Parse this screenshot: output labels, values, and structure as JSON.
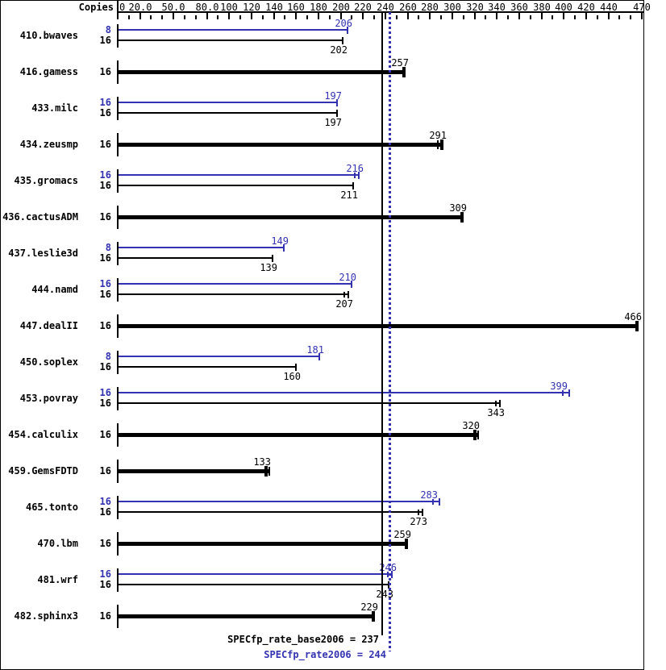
{
  "header": {
    "copies_label": "Copies"
  },
  "summary": {
    "base_text": "SPECfp_rate_base2006 = 237",
    "peak_text": "SPECfp_rate2006 = 244",
    "base_value": 237,
    "peak_value": 244
  },
  "colors": {
    "peak": "#3333b2",
    "base": "#000000",
    "background": "#ffffff"
  },
  "chart_data": {
    "type": "bar",
    "orientation": "horizontal",
    "xlabel": "Copies",
    "axis": {
      "min": 0,
      "max": 470,
      "minor_step": 10,
      "labeled_ticks": [
        {
          "v": 0,
          "label": "0"
        },
        {
          "v": 20,
          "label": "20.0"
        },
        {
          "v": 50,
          "label": "50.0"
        },
        {
          "v": 80,
          "label": "80.0"
        },
        {
          "v": 100,
          "label": "100"
        },
        {
          "v": 120,
          "label": "120"
        },
        {
          "v": 140,
          "label": "140"
        },
        {
          "v": 160,
          "label": "160"
        },
        {
          "v": 180,
          "label": "180"
        },
        {
          "v": 200,
          "label": "200"
        },
        {
          "v": 220,
          "label": "220"
        },
        {
          "v": 240,
          "label": "240"
        },
        {
          "v": 260,
          "label": "260"
        },
        {
          "v": 280,
          "label": "280"
        },
        {
          "v": 300,
          "label": "300"
        },
        {
          "v": 320,
          "label": "320"
        },
        {
          "v": 340,
          "label": "340"
        },
        {
          "v": 360,
          "label": "360"
        },
        {
          "v": 380,
          "label": "380"
        },
        {
          "v": 400,
          "label": "400"
        },
        {
          "v": 420,
          "label": "420"
        },
        {
          "v": 440,
          "label": "440"
        },
        {
          "v": 470,
          "label": "470"
        }
      ]
    },
    "reference_lines": [
      {
        "value": 237,
        "style": "solid",
        "color": "#000000",
        "label": "SPECfp_rate_base2006 = 237"
      },
      {
        "value": 244,
        "style": "dotted",
        "color": "#3333b2",
        "label": "SPECfp_rate2006 = 244"
      }
    ],
    "groups": [
      {
        "name": "410.bwaves",
        "bars": [
          {
            "kind": "peak",
            "copies": "8",
            "value": 206,
            "marks": "single"
          },
          {
            "kind": "base",
            "copies": "16",
            "value": 202,
            "marks": "single"
          }
        ]
      },
      {
        "name": "416.gamess",
        "bars": [
          {
            "kind": "base-only",
            "copies": "16",
            "value": 257,
            "marks": "single"
          }
        ]
      },
      {
        "name": "433.milc",
        "bars": [
          {
            "kind": "peak",
            "copies": "16",
            "value": 197,
            "marks": "single"
          },
          {
            "kind": "base",
            "copies": "16",
            "value": 197,
            "marks": "single"
          }
        ]
      },
      {
        "name": "434.zeusmp",
        "bars": [
          {
            "kind": "base-only",
            "copies": "16",
            "value": 291,
            "marks": "double_before"
          }
        ]
      },
      {
        "name": "435.gromacs",
        "bars": [
          {
            "kind": "peak",
            "copies": "16",
            "value": 216,
            "marks": "double_before"
          },
          {
            "kind": "base",
            "copies": "16",
            "value": 211,
            "marks": "single"
          }
        ]
      },
      {
        "name": "436.cactusADM",
        "bars": [
          {
            "kind": "base-only",
            "copies": "16",
            "value": 309,
            "marks": "single"
          }
        ]
      },
      {
        "name": "437.leslie3d",
        "bars": [
          {
            "kind": "peak",
            "copies": "8",
            "value": 149,
            "marks": "single"
          },
          {
            "kind": "base",
            "copies": "16",
            "value": 139,
            "marks": "single"
          }
        ]
      },
      {
        "name": "444.namd",
        "bars": [
          {
            "kind": "peak",
            "copies": "16",
            "value": 210,
            "marks": "single"
          },
          {
            "kind": "base",
            "copies": "16",
            "value": 207,
            "marks": "double_before"
          }
        ]
      },
      {
        "name": "447.dealII",
        "bars": [
          {
            "kind": "base-only",
            "copies": "16",
            "value": 466,
            "marks": "single"
          }
        ]
      },
      {
        "name": "450.soplex",
        "bars": [
          {
            "kind": "peak",
            "copies": "8",
            "value": 181,
            "marks": "single"
          },
          {
            "kind": "base",
            "copies": "16",
            "value": 160,
            "marks": "single"
          }
        ]
      },
      {
        "name": "453.povray",
        "bars": [
          {
            "kind": "peak",
            "copies": "16",
            "value": 399,
            "marks": "whisker"
          },
          {
            "kind": "base",
            "copies": "16",
            "value": 343,
            "marks": "double_before"
          }
        ]
      },
      {
        "name": "454.calculix",
        "bars": [
          {
            "kind": "base-only",
            "copies": "16",
            "value": 320,
            "marks": "double_after"
          }
        ]
      },
      {
        "name": "459.GemsFDTD",
        "bars": [
          {
            "kind": "base-only",
            "copies": "16",
            "value": 133,
            "marks": "double_after"
          }
        ]
      },
      {
        "name": "465.tonto",
        "bars": [
          {
            "kind": "peak",
            "copies": "16",
            "value": 283,
            "marks": "whisker"
          },
          {
            "kind": "base",
            "copies": "16",
            "value": 273,
            "marks": "double_before"
          }
        ]
      },
      {
        "name": "470.lbm",
        "bars": [
          {
            "kind": "base-only",
            "copies": "16",
            "value": 259,
            "marks": "single"
          }
        ]
      },
      {
        "name": "481.wrf",
        "bars": [
          {
            "kind": "peak",
            "copies": "16",
            "value": 246,
            "marks": "double_before"
          },
          {
            "kind": "base",
            "copies": "16",
            "value": 243,
            "marks": "single"
          }
        ]
      },
      {
        "name": "482.sphinx3",
        "bars": [
          {
            "kind": "base-only",
            "copies": "16",
            "value": 229,
            "marks": "single"
          }
        ]
      }
    ]
  }
}
